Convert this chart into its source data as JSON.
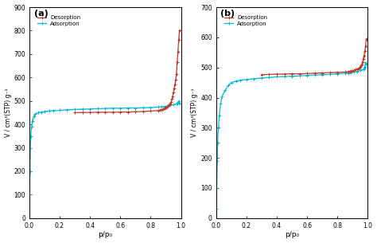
{
  "panel_a": {
    "label": "(a)",
    "ylim": [
      0,
      900
    ],
    "yticks": [
      0,
      100,
      200,
      300,
      400,
      500,
      600,
      700,
      800,
      900
    ],
    "xlim": [
      0,
      1.0
    ],
    "xticks": [
      0.0,
      0.2,
      0.4,
      0.6,
      0.8,
      1.0
    ],
    "ylabel": "V / cm³(STP) g⁻¹",
    "xlabel": "p/p₀",
    "adsorption_x": [
      0.002,
      0.004,
      0.007,
      0.01,
      0.015,
      0.02,
      0.03,
      0.04,
      0.06,
      0.08,
      0.1,
      0.13,
      0.16,
      0.2,
      0.25,
      0.3,
      0.35,
      0.4,
      0.45,
      0.5,
      0.55,
      0.6,
      0.65,
      0.7,
      0.75,
      0.8,
      0.85,
      0.87,
      0.89,
      0.91,
      0.93,
      0.95,
      0.97,
      0.975,
      0.98,
      0.985,
      0.99
    ],
    "adsorption_y": [
      100,
      200,
      300,
      350,
      390,
      415,
      435,
      445,
      450,
      453,
      455,
      457,
      459,
      460,
      462,
      464,
      465,
      466,
      467,
      468,
      469,
      469,
      470,
      470,
      471,
      472,
      474,
      475,
      476,
      478,
      481,
      484,
      488,
      490,
      493,
      500,
      490
    ],
    "desorption_x": [
      0.99,
      0.985,
      0.98,
      0.975,
      0.97,
      0.965,
      0.96,
      0.955,
      0.95,
      0.945,
      0.94,
      0.935,
      0.93,
      0.925,
      0.92,
      0.915,
      0.91,
      0.905,
      0.9,
      0.89,
      0.88,
      0.87,
      0.86,
      0.85,
      0.8,
      0.75,
      0.7,
      0.65,
      0.6,
      0.55,
      0.5,
      0.45,
      0.4,
      0.35,
      0.3
    ],
    "desorption_y": [
      800,
      760,
      710,
      665,
      615,
      590,
      570,
      555,
      535,
      520,
      508,
      496,
      490,
      485,
      481,
      478,
      475,
      473,
      471,
      468,
      465,
      463,
      461,
      459,
      457,
      455,
      454,
      453,
      453,
      452,
      452,
      452,
      451,
      451,
      450
    ],
    "adsorption_color": "#00bcd4",
    "desorption_color": "#c0392b"
  },
  "panel_b": {
    "label": "(b)",
    "ylim": [
      0,
      700
    ],
    "yticks": [
      0,
      100,
      200,
      300,
      400,
      500,
      600,
      700
    ],
    "xlim": [
      0,
      1.0
    ],
    "xticks": [
      0.0,
      0.2,
      0.4,
      0.6,
      0.8,
      1.0
    ],
    "ylabel": "V / cm³(STP) g⁻¹",
    "xlabel": "p/p₀",
    "adsorption_x": [
      0.002,
      0.004,
      0.007,
      0.01,
      0.015,
      0.02,
      0.03,
      0.04,
      0.06,
      0.08,
      0.1,
      0.13,
      0.16,
      0.2,
      0.25,
      0.3,
      0.35,
      0.4,
      0.45,
      0.5,
      0.55,
      0.6,
      0.65,
      0.7,
      0.75,
      0.8,
      0.85,
      0.87,
      0.89,
      0.91,
      0.93,
      0.95,
      0.97,
      0.975,
      0.98,
      0.985,
      0.99
    ],
    "adsorption_y": [
      30,
      100,
      190,
      250,
      300,
      340,
      380,
      405,
      425,
      440,
      450,
      455,
      458,
      460,
      463,
      465,
      467,
      469,
      470,
      471,
      472,
      474,
      475,
      476,
      477,
      479,
      481,
      482,
      483,
      485,
      487,
      490,
      493,
      497,
      503,
      515,
      510
    ],
    "desorption_x": [
      0.99,
      0.985,
      0.98,
      0.975,
      0.97,
      0.965,
      0.96,
      0.955,
      0.95,
      0.945,
      0.94,
      0.93,
      0.92,
      0.91,
      0.9,
      0.89,
      0.88,
      0.87,
      0.85,
      0.8,
      0.75,
      0.7,
      0.65,
      0.6,
      0.55,
      0.5,
      0.45,
      0.4,
      0.35,
      0.3
    ],
    "desorption_y": [
      595,
      570,
      555,
      540,
      528,
      518,
      511,
      506,
      502,
      499,
      497,
      495,
      493,
      491,
      489,
      488,
      487,
      486,
      485,
      484,
      483,
      482,
      481,
      480,
      479,
      479,
      478,
      478,
      477,
      476
    ],
    "adsorption_color": "#00bcd4",
    "desorption_color": "#c0392b"
  }
}
